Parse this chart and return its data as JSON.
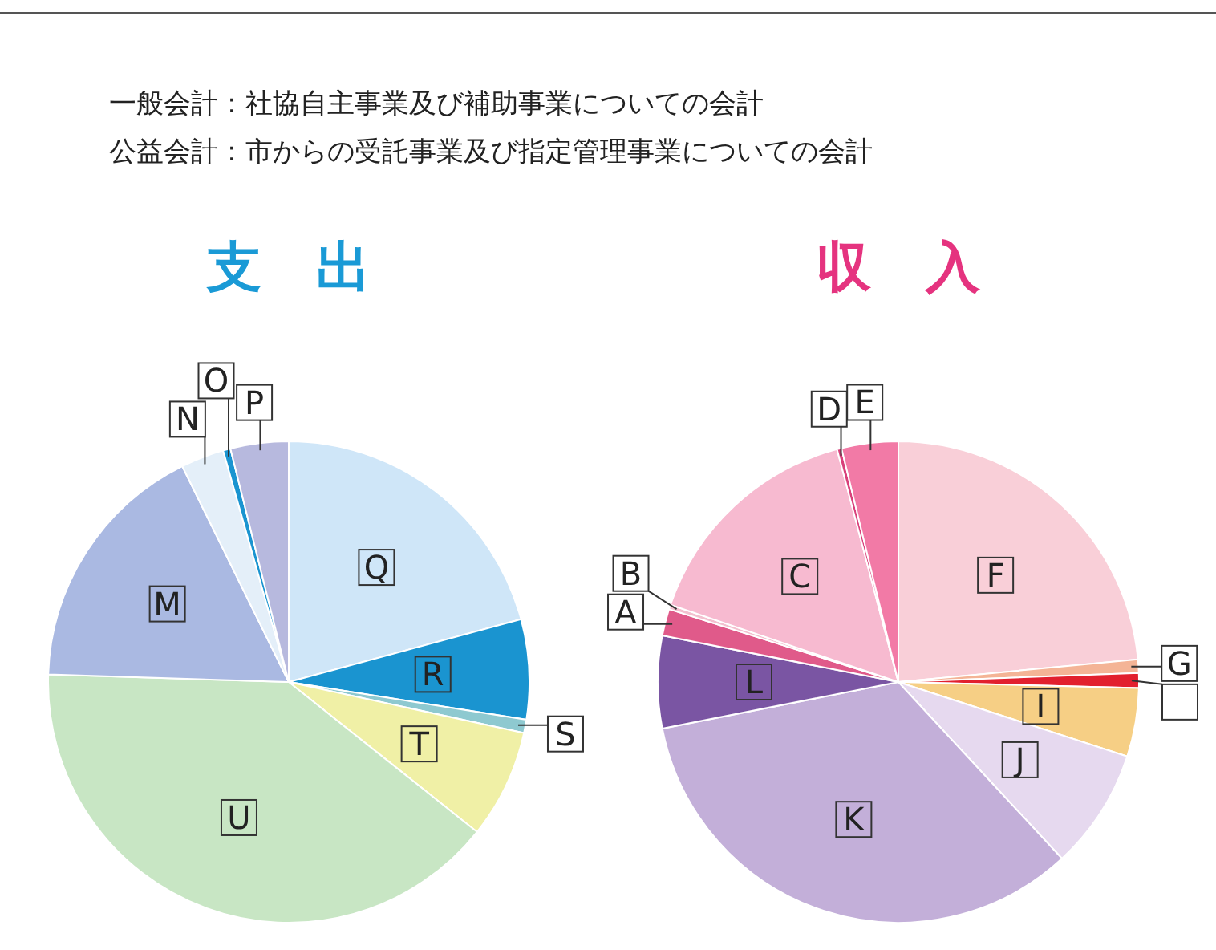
{
  "chart_data": [
    {
      "type": "pie",
      "title": "支　出",
      "annotations": [
        "一般会計：社協自主事業及び補助事業についての会計",
        "公益会計：市からの受託事業及び指定管理事業についての会計"
      ],
      "categories": [
        "Q",
        "R",
        "S",
        "T",
        "U",
        "M",
        "N",
        "O",
        "P"
      ],
      "values": [
        20.8,
        6.7,
        0.9,
        7.3,
        39.8,
        17.2,
        2.9,
        0.5,
        3.9
      ],
      "colors": [
        "#cfe6f8",
        "#1a94d0",
        "#8ec9d0",
        "#f0f0a6",
        "#c8e6c4",
        "#aab9e2",
        "#e4eff9",
        "#1a94d0",
        "#b7b9de"
      ]
    },
    {
      "type": "pie",
      "title": "収　入",
      "categories": [
        "F",
        "G",
        null,
        "I",
        "J",
        "K",
        "L",
        "A",
        "B",
        "C",
        "D",
        "E"
      ],
      "values": [
        23.5,
        0.9,
        1.0,
        4.6,
        8.1,
        33.8,
        6.2,
        1.8,
        0.3,
        15.7,
        0.3,
        3.8
      ],
      "colors": [
        "#f9cfd8",
        "#f4b496",
        "#e2202e",
        "#f6cf85",
        "#e6d9ef",
        "#c3afd9",
        "#7a55a3",
        "#e05a8a",
        "#f3c0cf",
        "#f7bad0",
        "#d8407a",
        "#f27aa6"
      ]
    }
  ]
}
